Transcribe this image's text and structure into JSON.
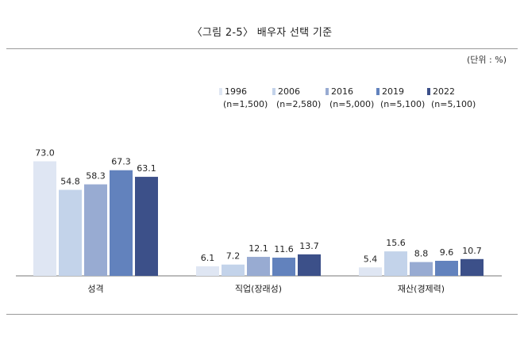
{
  "page_title": "〈그림 2-5〉 배우자 선택 기준",
  "unit_label": "(단위 : %)",
  "chart_data": {
    "type": "bar",
    "title": "〈그림 2-5〉 배우자 선택 기준",
    "xlabel": "",
    "ylabel": "",
    "ylim": [
      0,
      80
    ],
    "grid": false,
    "legend_position": "top-right",
    "categories": [
      "성격",
      "직업(장래성)",
      "재산(경제력)"
    ],
    "series": [
      {
        "name": "1996",
        "sub": "(n=1,500)",
        "color": "#dfe6f3",
        "values": [
          73.0,
          6.1,
          5.4
        ]
      },
      {
        "name": "2006",
        "sub": "(n=2,580)",
        "color": "#c3d3ea",
        "values": [
          54.8,
          7.2,
          15.6
        ]
      },
      {
        "name": "2016",
        "sub": "(n=5,000)",
        "color": "#98abd2",
        "values": [
          58.3,
          12.1,
          8.8
        ]
      },
      {
        "name": "2019",
        "sub": "(n=5,100)",
        "color": "#6282bd",
        "values": [
          67.3,
          11.6,
          9.6
        ]
      },
      {
        "name": "2022",
        "sub": "(n=5,100)",
        "color": "#3c5089",
        "values": [
          63.1,
          13.7,
          10.7
        ]
      }
    ]
  }
}
